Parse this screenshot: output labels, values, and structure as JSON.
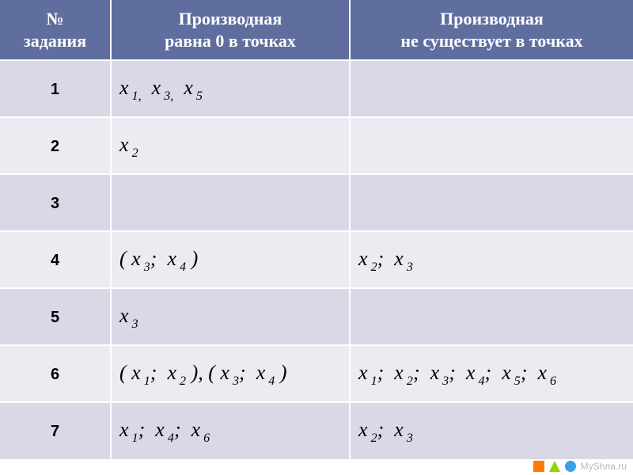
{
  "table": {
    "columns": [
      "№\nзадания",
      "Производная\nравна 0 в точках",
      "Производная\nне существует в точках"
    ],
    "rows": [
      {
        "n": "1",
        "zero": [
          [
            "x",
            "1,"
          ],
          [
            "x",
            "3,"
          ],
          [
            "x",
            "5"
          ]
        ],
        "none": []
      },
      {
        "n": "2",
        "zero": [
          [
            "x",
            "2"
          ]
        ],
        "none": []
      },
      {
        "n": "3",
        "zero": [],
        "none": []
      },
      {
        "n": "4",
        "zero": [
          [
            "(",
            ""
          ],
          [
            "x",
            "3"
          ],
          [
            ";",
            ""
          ],
          [
            "x",
            "4"
          ],
          [
            ")",
            ""
          ]
        ],
        "none": [
          [
            "x",
            "2"
          ],
          [
            ";",
            ""
          ],
          [
            "x",
            "3"
          ]
        ]
      },
      {
        "n": "5",
        "zero": [
          [
            "x",
            "3"
          ]
        ],
        "none": []
      },
      {
        "n": "6",
        "zero": [
          [
            "(",
            ""
          ],
          [
            "x",
            "1"
          ],
          [
            ";",
            ""
          ],
          [
            "x",
            "2"
          ],
          [
            "),",
            ""
          ],
          [
            "(",
            ""
          ],
          [
            "x",
            "3"
          ],
          [
            ";",
            ""
          ],
          [
            "x",
            "4"
          ],
          [
            ")",
            ""
          ]
        ],
        "none": [
          [
            "x",
            "1"
          ],
          [
            ";",
            ""
          ],
          [
            "x",
            "2"
          ],
          [
            ";",
            ""
          ],
          [
            "x",
            "3"
          ],
          [
            ";",
            ""
          ],
          [
            "x",
            "4"
          ],
          [
            ";",
            ""
          ],
          [
            "x",
            "5"
          ],
          [
            ";",
            ""
          ],
          [
            "x",
            "6"
          ]
        ]
      },
      {
        "n": "7",
        "zero": [
          [
            "x",
            "1"
          ],
          [
            ";",
            ""
          ],
          [
            "x",
            "4"
          ],
          [
            ";",
            ""
          ],
          [
            "x",
            "6"
          ]
        ],
        "none": [
          [
            "x",
            "2"
          ],
          [
            ";",
            ""
          ],
          [
            "x",
            "3"
          ]
        ]
      }
    ],
    "header_bg": "#5f6e9f",
    "row_colors": [
      "#d9d8e6",
      "#ecebf2"
    ],
    "header_font_size": 22,
    "cell_font_size": 26,
    "num_font_size": 20
  },
  "footer": {
    "text": "МуShла.ru"
  }
}
